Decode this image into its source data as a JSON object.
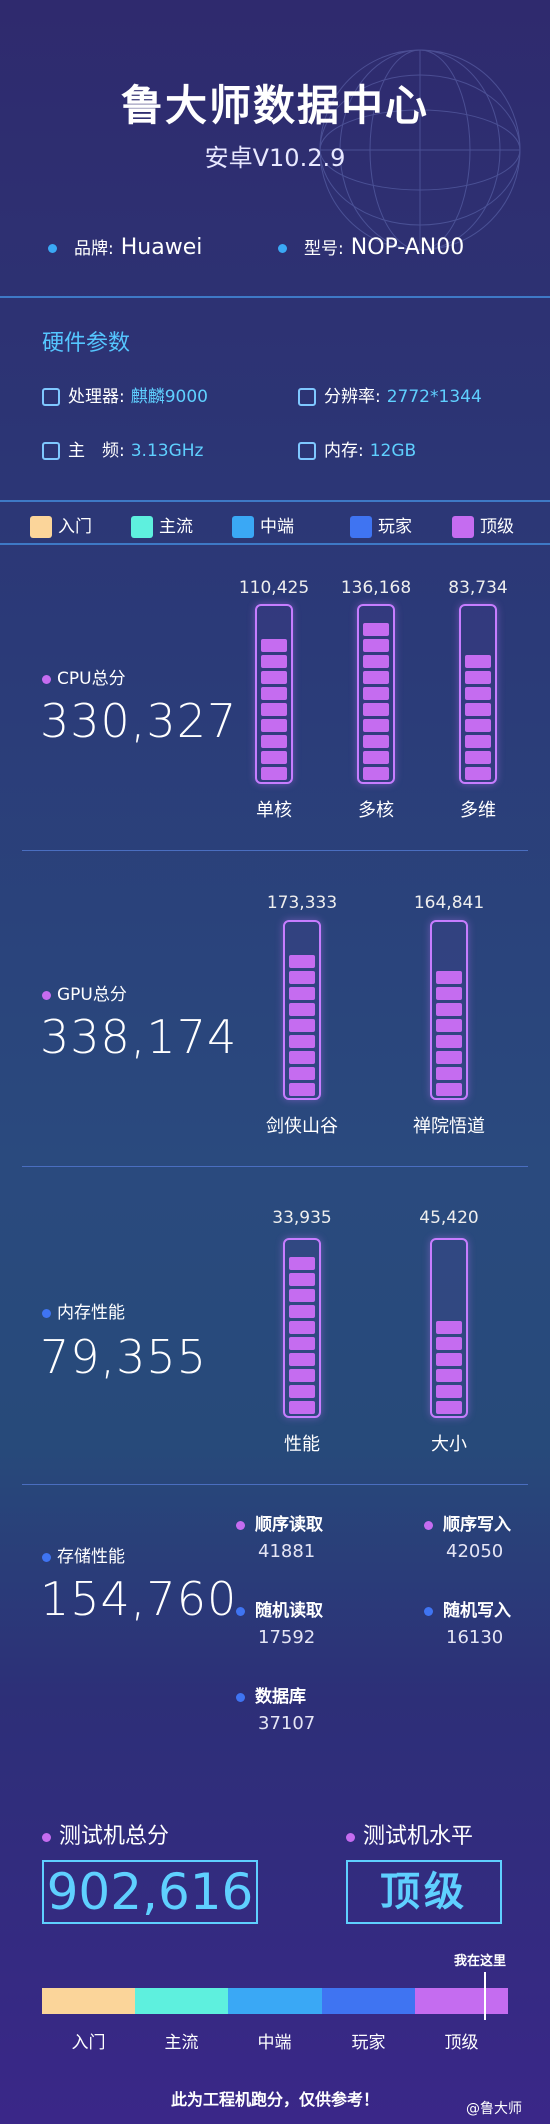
{
  "header": {
    "title": "鲁大师数据中心",
    "version": "安卓V10.2.9"
  },
  "device": {
    "brand_label": "品牌:",
    "brand_value": "Huawei",
    "model_label": "型号:",
    "model_value": "NOP-AN00"
  },
  "hardware": {
    "title": "硬件参数",
    "cpu_label": "处理器:",
    "cpu_value": "麒麟9000",
    "res_label": "分辨率:",
    "res_value": "2772*1344",
    "freq_label": "主　频:",
    "freq_value": "3.13GHz",
    "mem_label": "内存:",
    "mem_value": "12GB"
  },
  "legend": [
    {
      "label": "入门",
      "color": "#fbd59a"
    },
    {
      "label": "主流",
      "color": "#5ef0de"
    },
    {
      "label": "中端",
      "color": "#3aa8f5"
    },
    {
      "label": "玩家",
      "color": "#3f74f2"
    },
    {
      "label": "顶级",
      "color": "#c56cf0"
    }
  ],
  "cpu": {
    "label": "CPU总分",
    "score": "330,327",
    "bars": [
      {
        "value": "110,425",
        "name": "单核",
        "level": 9
      },
      {
        "value": "136,168",
        "name": "多核",
        "level": 10
      },
      {
        "value": "83,734",
        "name": "多维",
        "level": 8
      }
    ]
  },
  "gpu": {
    "label": "GPU总分",
    "score": "338,174",
    "bars": [
      {
        "value": "173,333",
        "name": "剑侠山谷",
        "level": 9
      },
      {
        "value": "164,841",
        "name": "禅院悟道",
        "level": 8
      }
    ]
  },
  "memory": {
    "label": "内存性能",
    "score": "79,355",
    "bars": [
      {
        "value": "33,935",
        "name": "性能",
        "level": 10
      },
      {
        "value": "45,420",
        "name": "大小",
        "level": 6
      }
    ]
  },
  "storage": {
    "label": "存储性能",
    "score": "154,760",
    "items": [
      {
        "name": "顺序读取",
        "value": "41881"
      },
      {
        "name": "顺序写入",
        "value": "42050"
      },
      {
        "name": "随机读取",
        "value": "17592"
      },
      {
        "name": "随机写入",
        "value": "16130"
      },
      {
        "name": "数据库",
        "value": "37107"
      }
    ]
  },
  "total": {
    "score_label": "测试机总分",
    "score": "902,616",
    "level_label": "测试机水平",
    "level": "顶级",
    "marker_label": "我在这里",
    "marker_position": 0.95
  },
  "footer": "此为工程机跑分，仅供参考！",
  "watermark": "@鲁大师"
}
